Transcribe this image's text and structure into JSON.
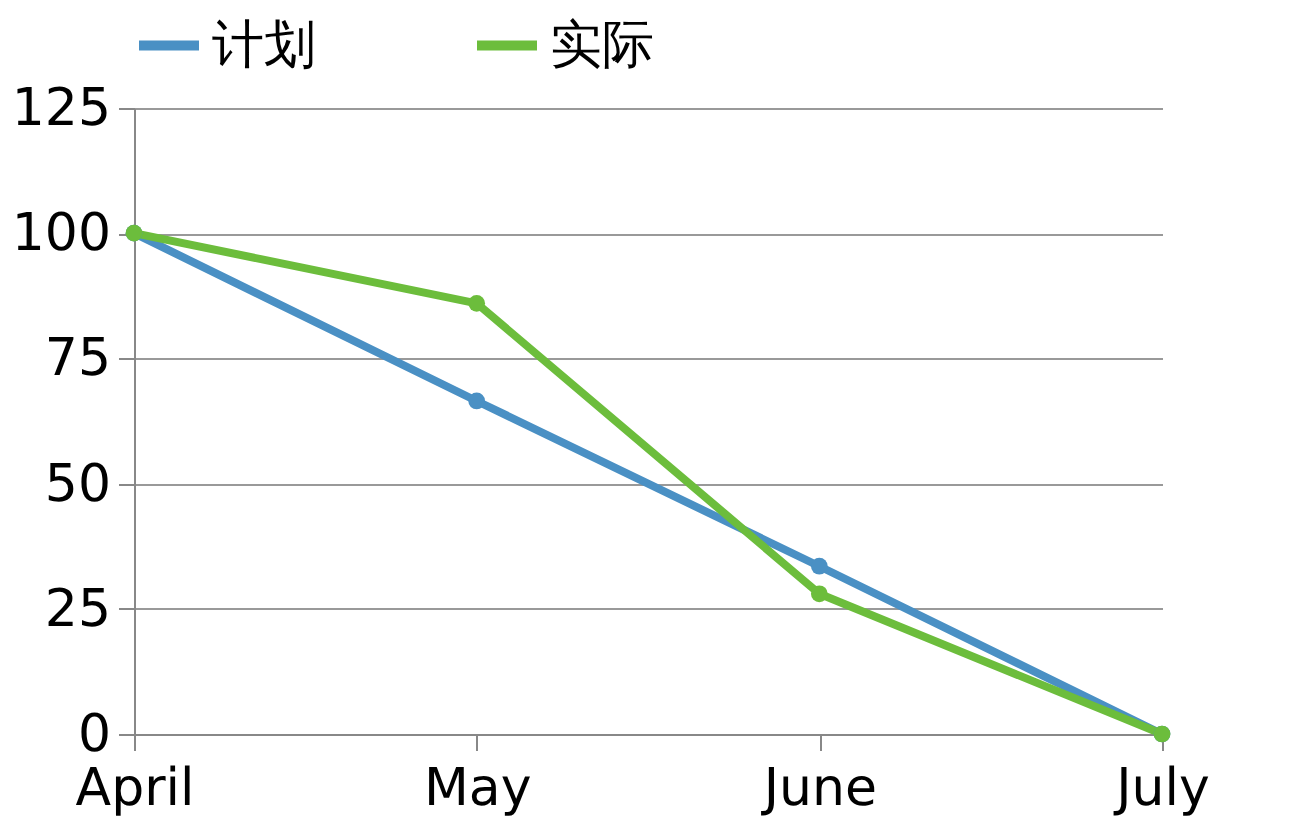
{
  "chart_data": {
    "type": "line",
    "categories": [
      "April",
      "May",
      "June",
      "July"
    ],
    "series": [
      {
        "name": "计划",
        "color": "#4a90c4",
        "values": [
          100,
          66.5,
          33.5,
          0
        ]
      },
      {
        "name": "实际",
        "color": "#6cbd3c",
        "values": [
          100,
          86,
          28,
          0
        ]
      }
    ],
    "ylim": [
      0,
      125
    ],
    "yticks": [
      0,
      25,
      50,
      75,
      100,
      125
    ],
    "grid": "y",
    "legend": "top",
    "marker": "circle",
    "line_style": "solid"
  }
}
